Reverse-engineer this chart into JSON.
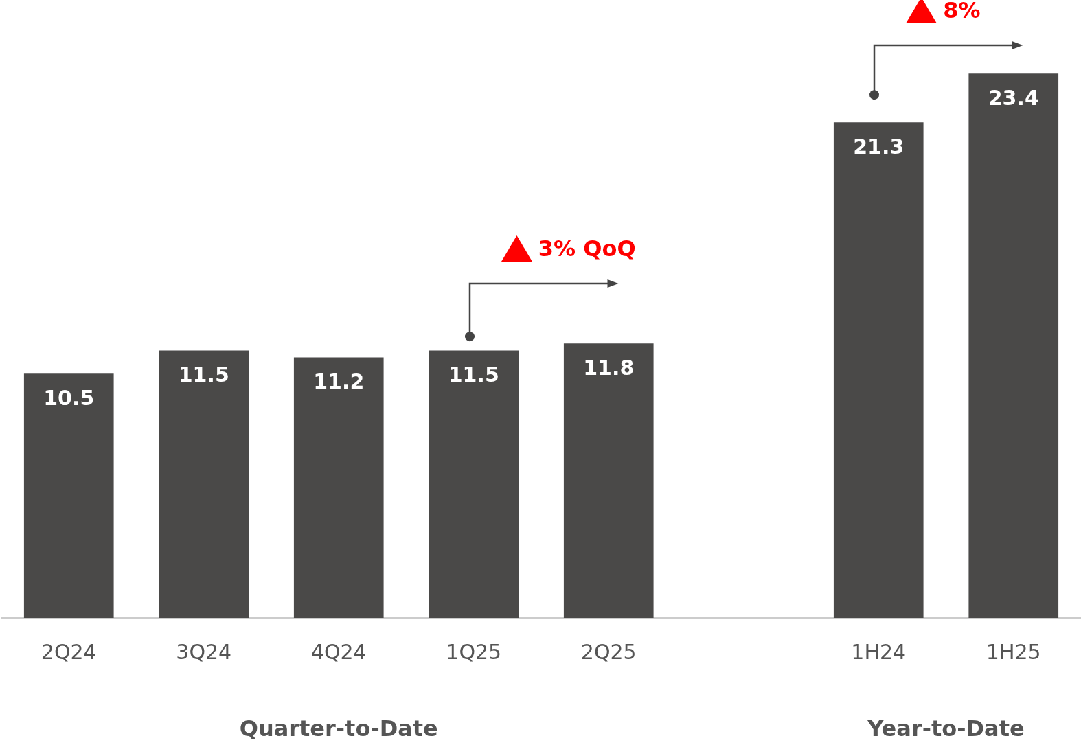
{
  "chart_data": {
    "type": "bar",
    "categories": [
      "2Q24",
      "3Q24",
      "4Q24",
      "1Q25",
      "2Q25",
      null,
      "1H24",
      "1H25"
    ],
    "values": [
      10.5,
      11.5,
      11.2,
      11.5,
      11.8,
      null,
      21.3,
      23.4
    ],
    "color": "#4a4948",
    "data_labels": true,
    "grid": false,
    "legend": false,
    "tick_labels": "x",
    "annotations": [
      "Quarter-to-Date",
      "Year-to-Date",
      "3% QoQ",
      "8%"
    ]
  }
}
